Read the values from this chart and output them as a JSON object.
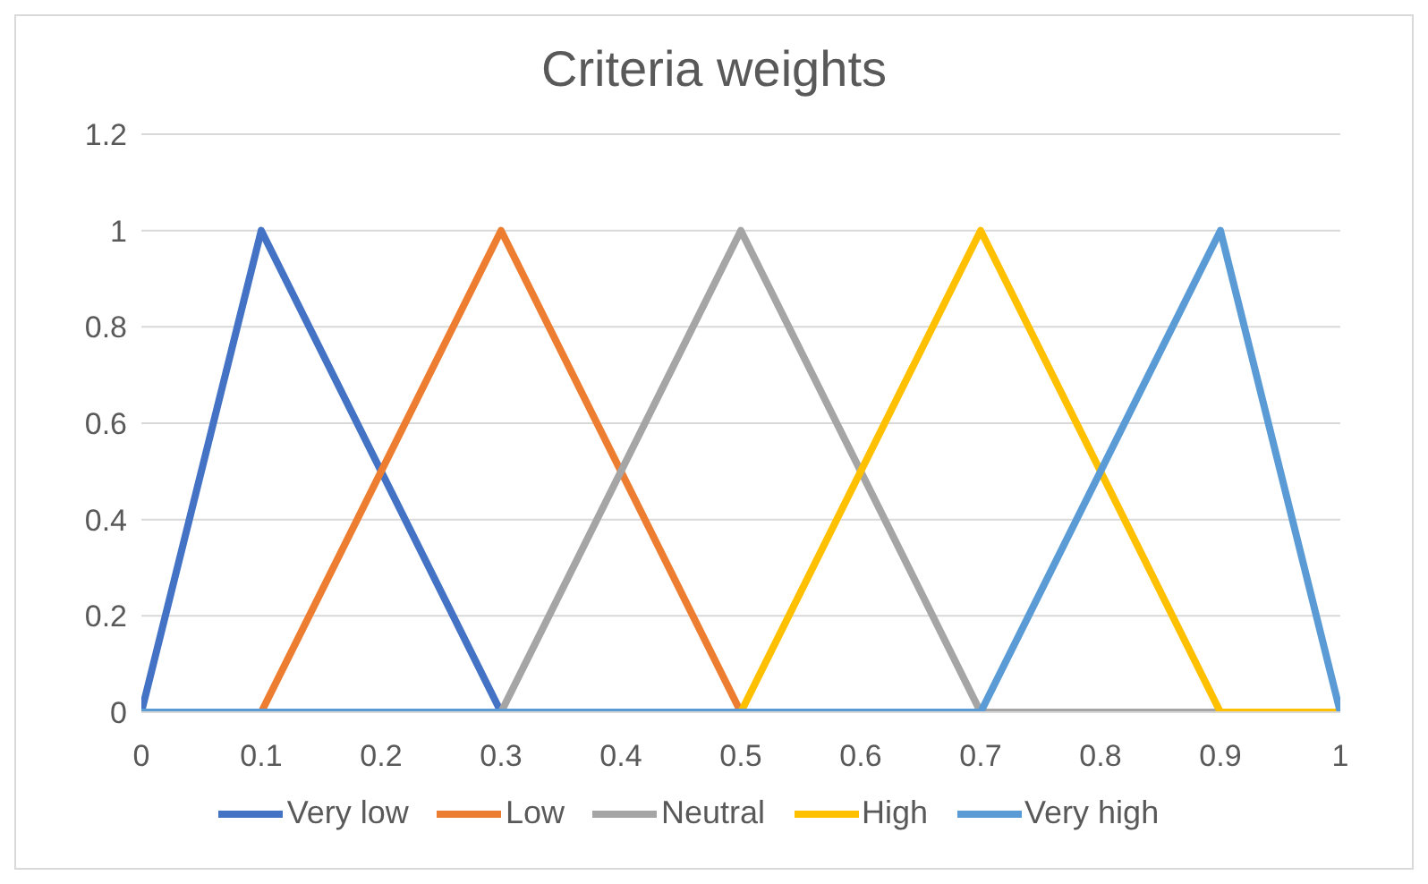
{
  "chart_data": {
    "type": "line",
    "title": "Criteria weights",
    "xlim": [
      0,
      1
    ],
    "xticks": [
      0,
      0.1,
      0.2,
      0.3,
      0.4,
      0.5,
      0.6,
      0.7,
      0.8,
      0.9,
      1
    ],
    "ylim": [
      0,
      1.2
    ],
    "yticks": [
      0,
      0.2,
      0.4,
      0.6,
      0.8,
      1,
      1.2
    ],
    "grid": "y",
    "legend": "bottom",
    "marker": "none",
    "line_style": "solid",
    "series": [
      {
        "name": "Very low",
        "color": "#4472c4",
        "x": [
          0,
          0.1,
          0.3
        ],
        "values": [
          0,
          1,
          0
        ]
      },
      {
        "name": "Low",
        "color": "#ed7d31",
        "x": [
          0.1,
          0.3,
          0.5
        ],
        "values": [
          0,
          1,
          0
        ]
      },
      {
        "name": "Neutral",
        "color": "#a5a5a5",
        "x": [
          0.3,
          0.5,
          0.7,
          0.9
        ],
        "values": [
          0,
          1,
          0,
          0
        ]
      },
      {
        "name": "High",
        "color": "#ffc000",
        "x": [
          0.5,
          0.7,
          0.9,
          1
        ],
        "values": [
          0,
          1,
          0,
          0
        ]
      },
      {
        "name": "Very high",
        "color": "#5b9bd5",
        "x": [
          0,
          0.7,
          0.9,
          1
        ],
        "values": [
          0,
          0,
          1,
          0
        ]
      }
    ]
  }
}
